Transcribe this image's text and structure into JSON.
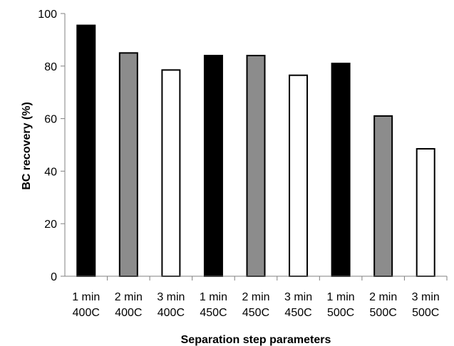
{
  "chart_data": {
    "type": "bar",
    "title": "",
    "xlabel": "Separation step parameters",
    "ylabel": "BC recovery (%)",
    "ylim": [
      0,
      100
    ],
    "yticks": [
      0,
      20,
      40,
      60,
      80,
      100
    ],
    "grid": false,
    "legend": "none",
    "categories": [
      [
        "1 min",
        "400C"
      ],
      [
        "2 min",
        "400C"
      ],
      [
        "3 min",
        "400C"
      ],
      [
        "1 min",
        "450C"
      ],
      [
        "2 min",
        "450C"
      ],
      [
        "3 min",
        "450C"
      ],
      [
        "1 min",
        "500C"
      ],
      [
        "2 min",
        "500C"
      ],
      [
        "3 min",
        "500C"
      ]
    ],
    "values": [
      95.5,
      85,
      78.5,
      84,
      84,
      76.5,
      81,
      61,
      48.5
    ],
    "bar_fills": [
      "#000000",
      "#8c8c8c",
      "#ffffff",
      "#000000",
      "#8c8c8c",
      "#ffffff",
      "#000000",
      "#8c8c8c",
      "#ffffff"
    ]
  }
}
